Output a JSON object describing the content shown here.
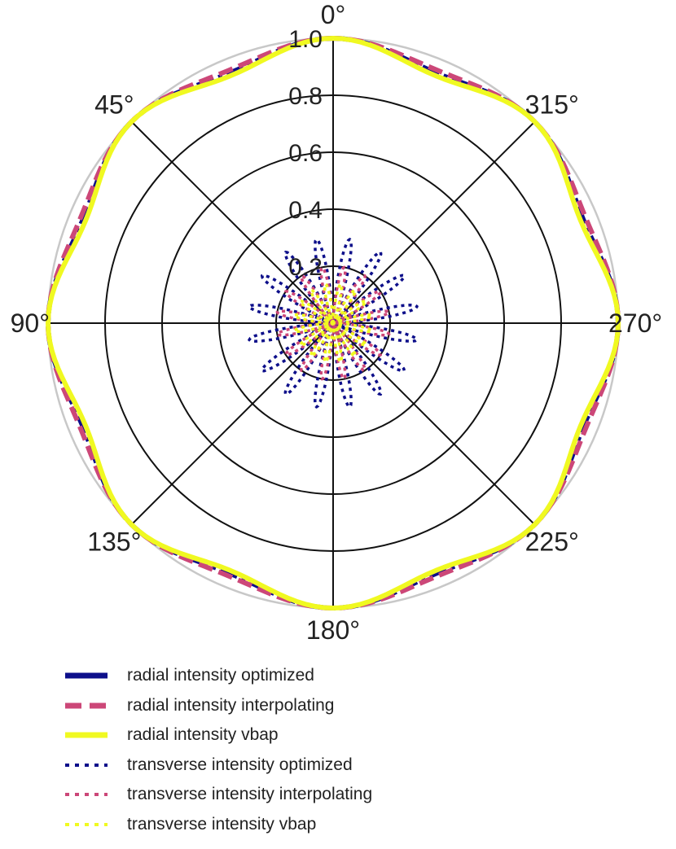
{
  "chart_data": {
    "type": "polar-line",
    "theta_direction": "counterclockwise",
    "theta_zero_location": "top",
    "angle_ticks": [
      "0°",
      "45°",
      "90°",
      "135°",
      "180°",
      "225°",
      "270°",
      "315°"
    ],
    "angle_tick_values": [
      0,
      45,
      90,
      135,
      180,
      225,
      270,
      315
    ],
    "radial_ticks": [
      "0.2",
      "0.4",
      "0.6",
      "0.8",
      "1.0"
    ],
    "radial_tick_values": [
      0.2,
      0.4,
      0.6,
      0.8,
      1.0
    ],
    "rlim": [
      0,
      1.0
    ],
    "grid": true,
    "legend_position": "bottom",
    "series": [
      {
        "name": "radial intensity optimized",
        "color": "#0d0f8a",
        "style": "dashdot",
        "kind": "radial",
        "variant": "optimized",
        "theta_deg": [
          0,
          22.5,
          45,
          67.5,
          90,
          112.5,
          135,
          157.5,
          180,
          202.5,
          225,
          247.5,
          270,
          292.5,
          315,
          337.5
        ],
        "r": [
          1.0,
          0.95,
          1.0,
          0.95,
          1.0,
          0.95,
          1.0,
          0.95,
          1.0,
          0.95,
          1.0,
          0.95,
          1.0,
          0.95,
          1.0,
          0.95
        ]
      },
      {
        "name": "radial intensity interpolating",
        "color": "#cc4778",
        "style": "dashed",
        "kind": "radial",
        "variant": "interpolating",
        "theta_deg": [
          0,
          22.5,
          45,
          67.5,
          90,
          112.5,
          135,
          157.5,
          180,
          202.5,
          225,
          247.5,
          270,
          292.5,
          315,
          337.5
        ],
        "r": [
          1.0,
          0.96,
          1.0,
          0.96,
          1.0,
          0.96,
          1.0,
          0.96,
          1.0,
          0.96,
          1.0,
          0.96,
          1.0,
          0.96,
          1.0,
          0.96
        ]
      },
      {
        "name": "radial intensity vbap",
        "color": "#f0f921",
        "style": "solid",
        "kind": "radial",
        "variant": "vbap",
        "theta_deg": [
          0,
          22.5,
          45,
          67.5,
          90,
          112.5,
          135,
          157.5,
          180,
          202.5,
          225,
          247.5,
          270,
          292.5,
          315,
          337.5
        ],
        "r": [
          1.0,
          0.94,
          1.0,
          0.94,
          1.0,
          0.94,
          1.0,
          0.94,
          1.0,
          0.94,
          1.0,
          0.94,
          1.0,
          0.94,
          1.0,
          0.94
        ]
      },
      {
        "name": "transverse intensity optimized",
        "color": "#0d0f8a",
        "style": "dotted",
        "kind": "transverse",
        "variant": "optimized",
        "theta_deg": [
          0,
          11.25,
          22.5,
          33.75,
          45,
          56.25,
          67.5,
          78.75,
          90,
          101.25,
          112.5,
          123.75,
          135,
          146.25,
          157.5,
          168.75,
          180,
          191.25,
          202.5,
          213.75,
          225,
          236.25,
          247.5,
          258.75,
          270,
          281.25,
          292.5,
          303.75,
          315,
          326.25,
          337.5,
          348.75
        ],
        "r": [
          0.0,
          0.3,
          0.0,
          0.3,
          0.0,
          0.3,
          0.0,
          0.3,
          0.0,
          0.3,
          0.0,
          0.3,
          0.0,
          0.3,
          0.0,
          0.3,
          0.0,
          0.3,
          0.0,
          0.3,
          0.0,
          0.3,
          0.0,
          0.3,
          0.0,
          0.3,
          0.0,
          0.3,
          0.0,
          0.3,
          0.0,
          0.3
        ]
      },
      {
        "name": "transverse intensity interpolating",
        "color": "#cc4778",
        "style": "dotted",
        "kind": "transverse",
        "variant": "interpolating",
        "theta_deg": [
          0,
          11.25,
          22.5,
          33.75,
          45,
          56.25,
          67.5,
          78.75,
          90,
          101.25,
          112.5,
          123.75,
          135,
          146.25,
          157.5,
          168.75,
          180,
          191.25,
          202.5,
          213.75,
          225,
          236.25,
          247.5,
          258.75,
          270,
          281.25,
          292.5,
          303.75,
          315,
          326.25,
          337.5,
          348.75
        ],
        "r": [
          0.0,
          0.2,
          0.0,
          0.2,
          0.0,
          0.2,
          0.0,
          0.2,
          0.0,
          0.2,
          0.0,
          0.2,
          0.0,
          0.2,
          0.0,
          0.2,
          0.0,
          0.2,
          0.0,
          0.2,
          0.0,
          0.2,
          0.0,
          0.2,
          0.0,
          0.2,
          0.0,
          0.2,
          0.0,
          0.2,
          0.0,
          0.2
        ]
      },
      {
        "name": "transverse intensity vbap",
        "color": "#f0f921",
        "style": "dotted",
        "kind": "transverse",
        "variant": "vbap",
        "theta_deg": [
          0,
          11.25,
          22.5,
          33.75,
          45,
          56.25,
          67.5,
          78.75,
          90,
          101.25,
          112.5,
          123.75,
          135,
          146.25,
          157.5,
          168.75,
          180,
          191.25,
          202.5,
          213.75,
          225,
          236.25,
          247.5,
          258.75,
          270,
          281.25,
          292.5,
          303.75,
          315,
          326.25,
          337.5,
          348.75
        ],
        "r": [
          0.0,
          0.14,
          0.0,
          0.14,
          0.0,
          0.14,
          0.0,
          0.14,
          0.0,
          0.14,
          0.0,
          0.14,
          0.0,
          0.14,
          0.0,
          0.14,
          0.0,
          0.14,
          0.0,
          0.14,
          0.0,
          0.14,
          0.0,
          0.14,
          0.0,
          0.14,
          0.0,
          0.14,
          0.0,
          0.14,
          0.0,
          0.14
        ]
      }
    ]
  }
}
